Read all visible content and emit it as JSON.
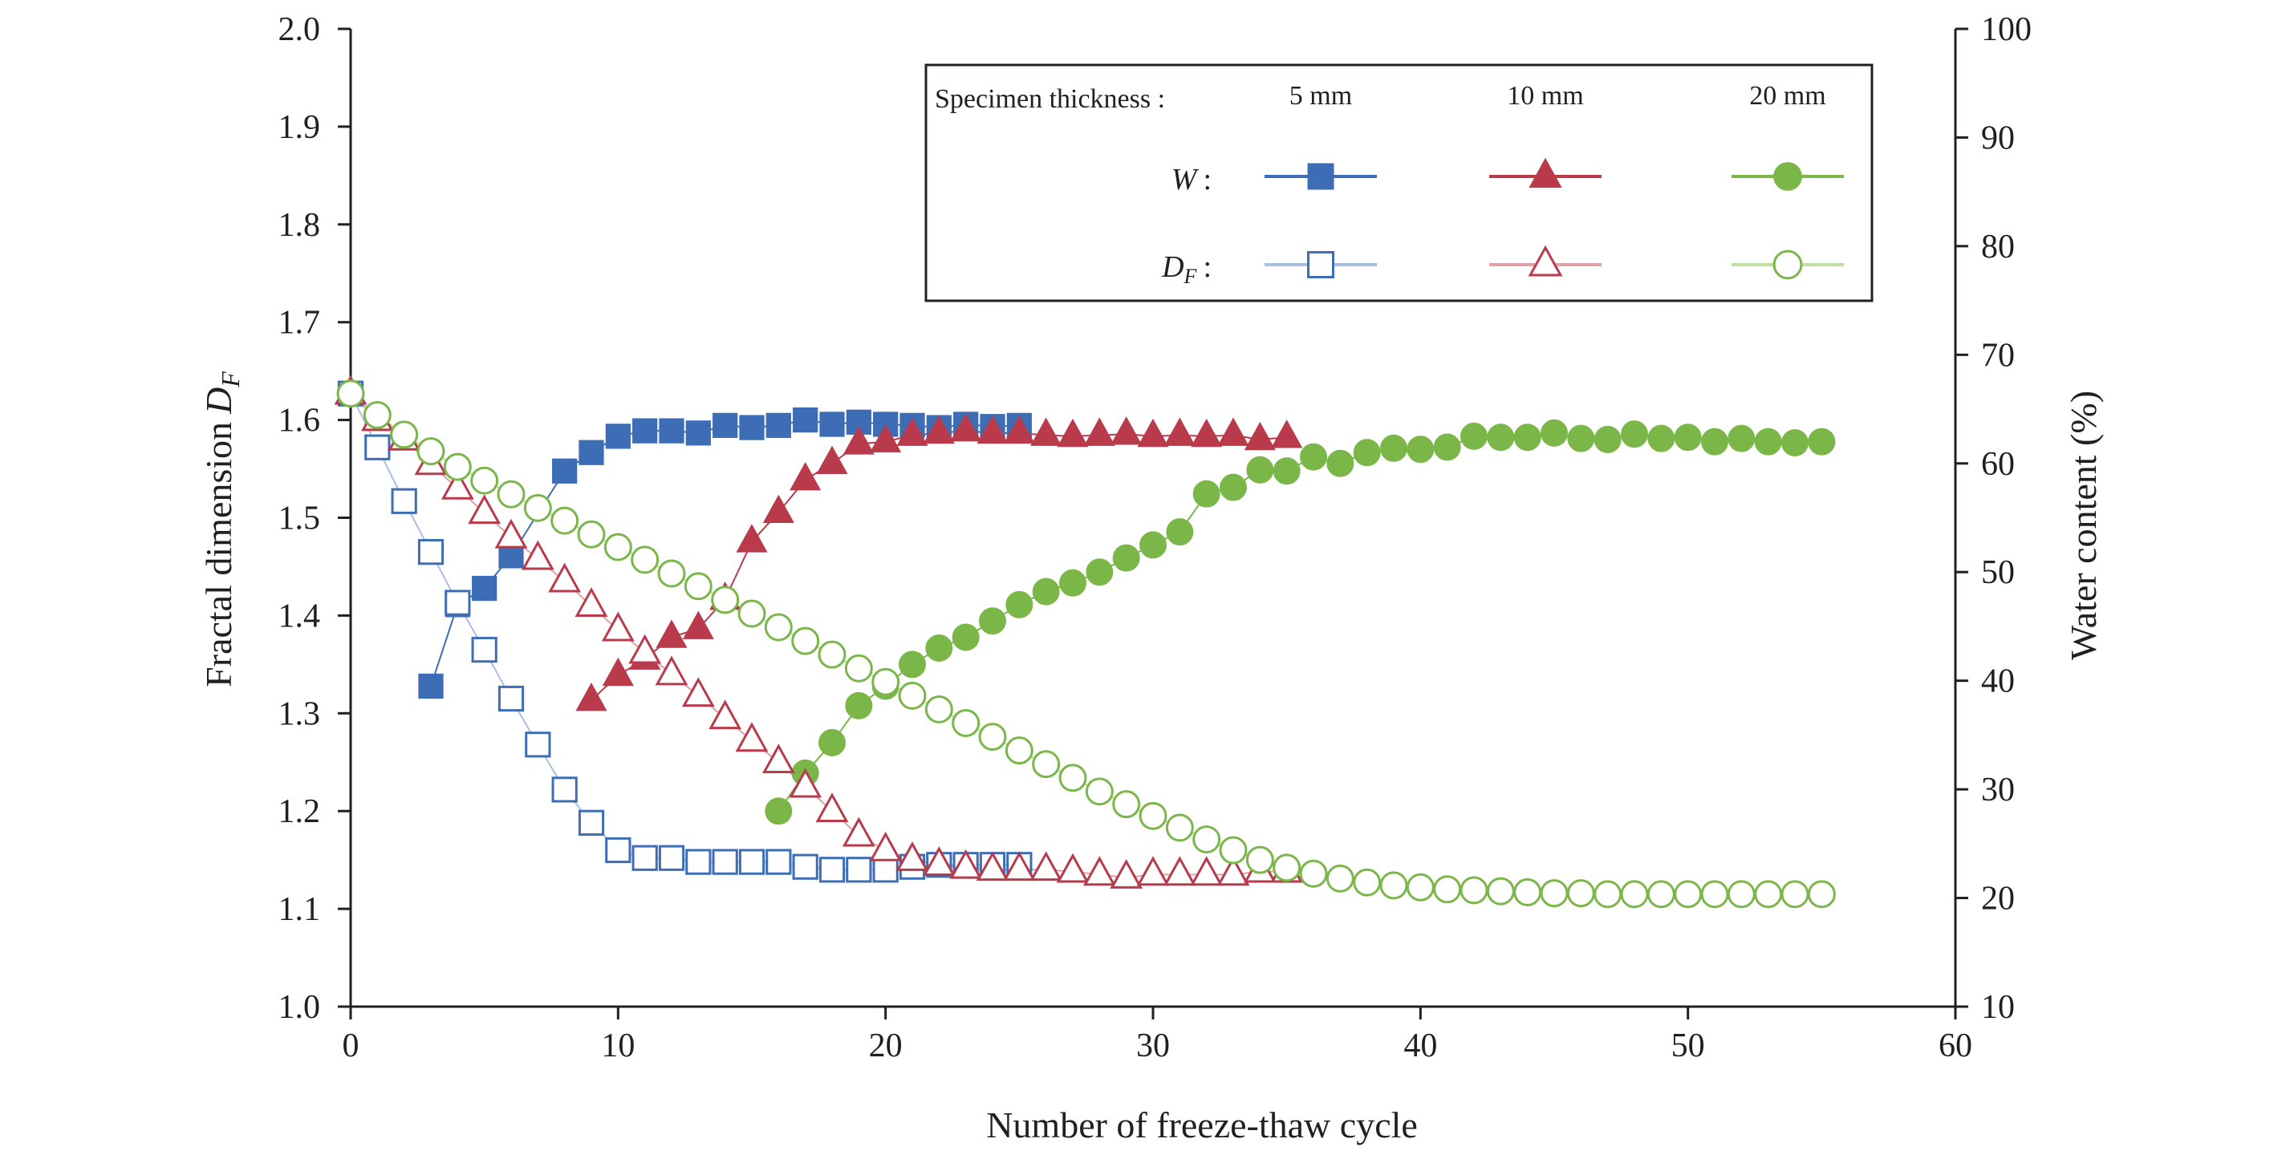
{
  "chart_data": {
    "type": "scatter",
    "xlabel": "Number of freeze-thaw cycle",
    "ylabel_left": "Fractal dimension",
    "ylabel_left_symbol": "D",
    "ylabel_left_sub": "F",
    "ylabel_right": "Water content (%)",
    "xlim": [
      0,
      60
    ],
    "ylim_left": [
      1.0,
      2.0
    ],
    "ylim_right": [
      10,
      100
    ],
    "xticks": [
      "0",
      "10",
      "20",
      "30",
      "40",
      "50",
      "60"
    ],
    "yticks_left": [
      "1.0",
      "1.1",
      "1.2",
      "1.3",
      "1.4",
      "1.5",
      "1.6",
      "1.7",
      "1.8",
      "1.9",
      "2.0"
    ],
    "yticks_right": [
      "10",
      "20",
      "30",
      "40",
      "50",
      "60",
      "70",
      "80",
      "90",
      "100"
    ],
    "grid": false,
    "legend": {
      "placement": "top-right",
      "heading": "Specimen thickness :",
      "thickness_labels": [
        "5 mm",
        "10 mm",
        "20 mm"
      ],
      "row_w_label": "W",
      "row_df_symbol": "D",
      "row_df_sub": "F",
      "colon": ":"
    },
    "colors": {
      "blue": "#3d6db5",
      "red": "#b83a4b",
      "green": "#7ab648",
      "blue_light": "#a9bfe0",
      "red_light": "#e0a0a8",
      "green_light": "#bddfa2"
    },
    "series": [
      {
        "thickness": "5 mm",
        "quantity": "W",
        "axis": "right",
        "marker": "square",
        "filled": true,
        "color": "blue",
        "x": [
          3,
          4,
          5,
          6,
          8,
          9,
          10,
          11,
          12,
          13,
          14,
          15,
          16,
          17,
          18,
          19,
          20,
          21,
          22,
          23,
          24,
          25
        ],
        "y": [
          39.5,
          47,
          48.5,
          51.5,
          59.3,
          61,
          62.5,
          63,
          63,
          62.8,
          63.5,
          63.3,
          63.5,
          64,
          63.6,
          63.8,
          63.6,
          63.5,
          63.3,
          63.6,
          63.4,
          63.5
        ]
      },
      {
        "thickness": "10 mm",
        "quantity": "W",
        "axis": "right",
        "marker": "triangle",
        "filled": true,
        "color": "red",
        "x": [
          9,
          10,
          11,
          12,
          13,
          14,
          15,
          16,
          17,
          18,
          19,
          20,
          21,
          22,
          23,
          24,
          25,
          26,
          27,
          28,
          29,
          30,
          31,
          32,
          33,
          34,
          35
        ],
        "y": [
          38.2,
          40.5,
          42,
          44,
          44.8,
          47.5,
          52.8,
          55.5,
          58.5,
          60,
          61.8,
          62,
          62.6,
          62.8,
          63,
          62.8,
          62.8,
          62.6,
          62.5,
          62.6,
          62.7,
          62.5,
          62.6,
          62.5,
          62.6,
          62.2,
          62.4
        ]
      },
      {
        "thickness": "20 mm",
        "quantity": "W",
        "axis": "right",
        "marker": "circle",
        "filled": true,
        "color": "green",
        "x": [
          16,
          17,
          18,
          19,
          20,
          21,
          22,
          23,
          24,
          25,
          26,
          27,
          28,
          29,
          30,
          31,
          32,
          33,
          34,
          35,
          36,
          37,
          38,
          39,
          40,
          41,
          42,
          43,
          44,
          45,
          46,
          47,
          48,
          49,
          50,
          51,
          52,
          53,
          54,
          55
        ],
        "y": [
          28,
          31.5,
          34.3,
          37.7,
          39.5,
          41.5,
          43,
          44,
          45.5,
          47,
          48.2,
          49,
          50,
          51.3,
          52.5,
          53.7,
          57.2,
          57.8,
          59.4,
          59.3,
          60.6,
          60,
          61,
          61.4,
          61.3,
          61.5,
          62.5,
          62.4,
          62.4,
          62.8,
          62.3,
          62.2,
          62.7,
          62.3,
          62.4,
          62,
          62.3,
          62,
          61.9,
          62
        ]
      },
      {
        "thickness": "5 mm",
        "quantity": "DF",
        "axis": "left",
        "marker": "square",
        "filled": false,
        "color": "blue",
        "x": [
          0,
          1,
          2,
          3,
          4,
          5,
          6,
          7,
          8,
          9,
          10,
          11,
          12,
          13,
          14,
          15,
          16,
          17,
          18,
          19,
          20,
          21,
          22,
          23,
          24,
          25
        ],
        "y": [
          1.627,
          1.572,
          1.517,
          1.465,
          1.413,
          1.365,
          1.315,
          1.268,
          1.222,
          1.188,
          1.16,
          1.152,
          1.152,
          1.148,
          1.148,
          1.148,
          1.148,
          1.143,
          1.14,
          1.14,
          1.14,
          1.143,
          1.145,
          1.145,
          1.145,
          1.145
        ]
      },
      {
        "thickness": "10 mm",
        "quantity": "DF",
        "axis": "left",
        "marker": "triangle",
        "filled": false,
        "color": "red",
        "x": [
          0,
          1,
          2,
          3,
          4,
          5,
          6,
          7,
          8,
          9,
          10,
          11,
          12,
          13,
          14,
          15,
          16,
          17,
          18,
          19,
          20,
          21,
          22,
          23,
          24,
          25,
          26,
          27,
          28,
          29,
          30,
          31,
          32,
          33,
          34,
          35
        ],
        "y": [
          1.627,
          1.6,
          1.58,
          1.555,
          1.53,
          1.505,
          1.48,
          1.458,
          1.435,
          1.41,
          1.385,
          1.362,
          1.34,
          1.318,
          1.295,
          1.272,
          1.25,
          1.225,
          1.2,
          1.175,
          1.16,
          1.15,
          1.145,
          1.142,
          1.14,
          1.14,
          1.14,
          1.138,
          1.135,
          1.132,
          1.135,
          1.135,
          1.135,
          1.135,
          1.138,
          1.138
        ]
      },
      {
        "thickness": "20 mm",
        "quantity": "DF",
        "axis": "left",
        "marker": "circle",
        "filled": false,
        "color": "green",
        "x": [
          0,
          1,
          2,
          3,
          4,
          5,
          6,
          7,
          8,
          9,
          10,
          11,
          12,
          13,
          14,
          15,
          16,
          17,
          18,
          19,
          20,
          21,
          22,
          23,
          24,
          25,
          26,
          27,
          28,
          29,
          30,
          31,
          32,
          33,
          34,
          35,
          36,
          37,
          38,
          39,
          40,
          41,
          42,
          43,
          44,
          45,
          46,
          47,
          48,
          49,
          50,
          51,
          52,
          53,
          54,
          55
        ],
        "y": [
          1.627,
          1.605,
          1.585,
          1.568,
          1.552,
          1.538,
          1.524,
          1.51,
          1.497,
          1.483,
          1.47,
          1.457,
          1.443,
          1.43,
          1.416,
          1.402,
          1.388,
          1.374,
          1.36,
          1.346,
          1.332,
          1.318,
          1.304,
          1.29,
          1.276,
          1.262,
          1.248,
          1.234,
          1.22,
          1.207,
          1.195,
          1.183,
          1.171,
          1.16,
          1.15,
          1.142,
          1.136,
          1.131,
          1.127,
          1.124,
          1.122,
          1.12,
          1.119,
          1.118,
          1.117,
          1.116,
          1.116,
          1.115,
          1.115,
          1.115,
          1.115,
          1.115,
          1.115,
          1.115,
          1.115,
          1.115
        ]
      }
    ]
  }
}
